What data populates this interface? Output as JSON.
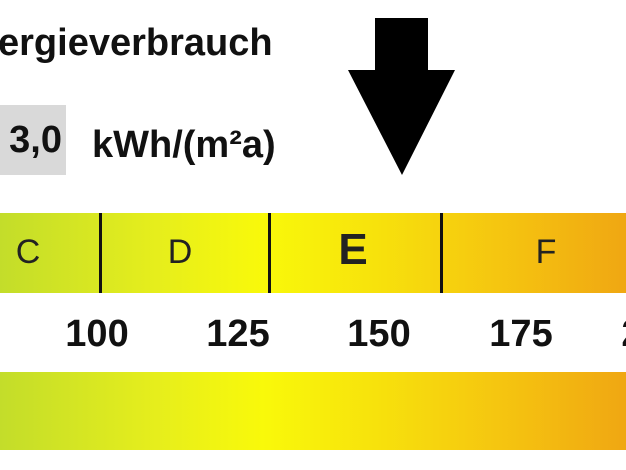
{
  "header": {
    "title": "ergieverbrauch",
    "value": "3,0",
    "unit": "kWh/(m²a)"
  },
  "indicator": {
    "icon": "arrow-down-icon",
    "value": 158
  },
  "scale": {
    "classes": [
      {
        "label": "C",
        "current": false
      },
      {
        "label": "D",
        "current": false
      },
      {
        "label": "E",
        "current": true
      },
      {
        "label": "F",
        "current": false
      }
    ],
    "ticks": [
      "100",
      "125",
      "150",
      "175",
      "2"
    ],
    "colors": {
      "start": "#c3dd2a",
      "mid": "#f9f90a",
      "end": "#f0a712"
    }
  }
}
